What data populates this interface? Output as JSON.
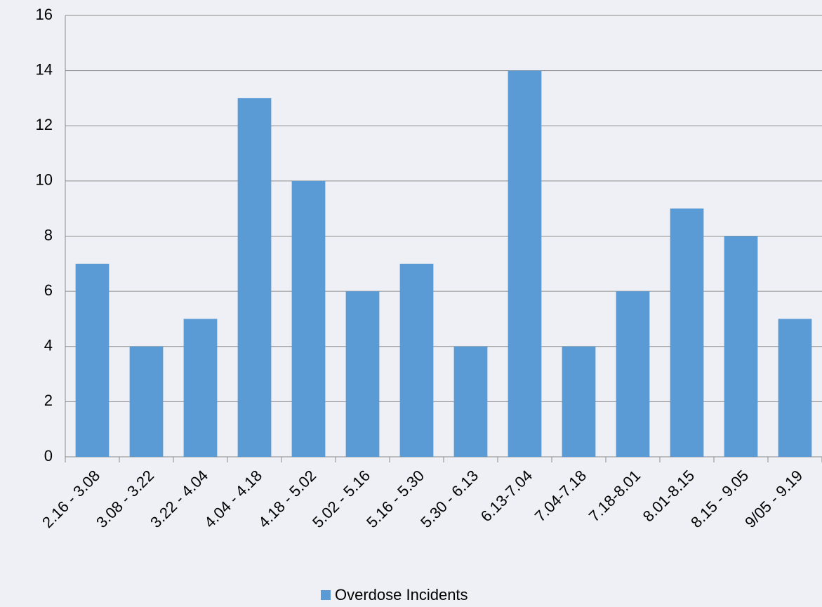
{
  "chart_data": {
    "type": "bar",
    "categories": [
      "2.16 - 3.08",
      "3.08 - 3.22",
      "3.22 - 4.04",
      "4.04 - 4.18",
      "4.18 - 5.02",
      "5.02 - 5.16",
      "5.16 - 5.30",
      "5.30 - 6.13",
      "6.13-7.04",
      "7.04-7.18",
      "7.18-8.01",
      "8.01-8.15",
      "8.15 - 9.05",
      "9/05 - 9.19"
    ],
    "series": [
      {
        "name": "Overdose Incidents",
        "color": "#5b9bd5",
        "values": [
          7,
          4,
          5,
          13,
          10,
          6,
          7,
          4,
          14,
          4,
          6,
          9,
          8,
          5
        ]
      }
    ],
    "ylim": [
      0,
      16
    ],
    "yticks": [
      0,
      2,
      4,
      6,
      8,
      10,
      12,
      14,
      16
    ],
    "grid": true,
    "legend": "bottom"
  }
}
